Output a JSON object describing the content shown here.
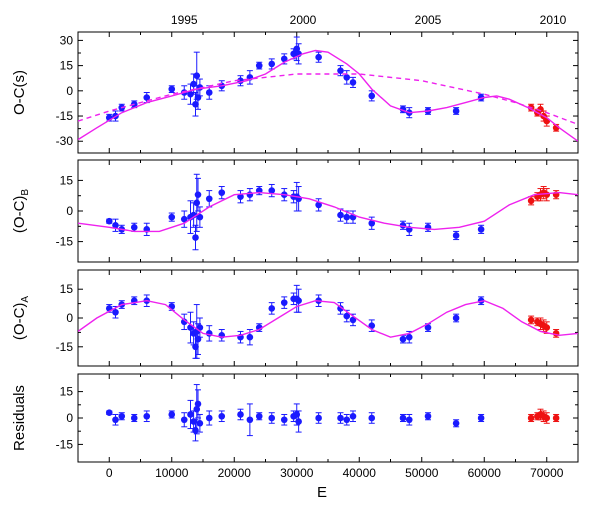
{
  "chart_data": [
    {
      "panel": "oc",
      "type": "scatter",
      "ylabel": "O-C(s)",
      "ylim": [
        -37,
        35
      ],
      "yticks": [
        -30,
        -15,
        0,
        15,
        30
      ],
      "xlim": [
        -5000,
        75000
      ],
      "series": [
        {
          "color": "#1a1aff",
          "kind": "points",
          "x": [
            0,
            1000,
            2000,
            4000,
            6000,
            10000,
            12000,
            13000,
            13500,
            13800,
            14000,
            14200,
            14500,
            16000,
            18000,
            21000,
            22500,
            24000,
            26000,
            28000,
            29500,
            30000,
            30300,
            33500,
            37000,
            38000,
            39000,
            42000,
            47000,
            48000,
            51000,
            55500,
            59500
          ],
          "y": [
            -16,
            -15,
            -10,
            -8,
            -4,
            1,
            -1,
            -2,
            4,
            -8,
            9,
            -4,
            2,
            -1,
            3,
            6,
            8,
            15,
            16,
            19,
            22,
            25,
            22,
            20,
            12,
            8,
            5,
            -3,
            -11,
            -13,
            -12,
            -12,
            -4
          ],
          "err": [
            2,
            3,
            2,
            2,
            3,
            2,
            4,
            6,
            6,
            7,
            14,
            7,
            5,
            4,
            3,
            3,
            4,
            2,
            3,
            3,
            3,
            7,
            6,
            3,
            3,
            4,
            3,
            3,
            2,
            3,
            2,
            2,
            2
          ]
        },
        {
          "color": "#ee1111",
          "kind": "points",
          "x": [
            67500,
            68500,
            69000,
            69500,
            70000,
            71500
          ],
          "y": [
            -10,
            -13,
            -11,
            -15,
            -18,
            -22
          ],
          "err": [
            2,
            2,
            3,
            3,
            3,
            2
          ]
        },
        {
          "color": "#ee22ee",
          "kind": "solid",
          "x": [
            -5000,
            -2000,
            2000,
            6000,
            10000,
            14000,
            18000,
            22000,
            25000,
            28000,
            31000,
            33000,
            35000,
            38000,
            40000,
            42000,
            45000,
            48000,
            51000,
            54000,
            57000,
            60000,
            62000,
            64000,
            67000,
            70000,
            72000,
            75000
          ],
          "y": [
            -29,
            -22,
            -13,
            -7,
            -3,
            1,
            3,
            6,
            10,
            17,
            22,
            24,
            23,
            16,
            10,
            1,
            -9,
            -13,
            -12,
            -10,
            -7,
            -4,
            -3,
            -5,
            -10,
            -16,
            -22,
            -30
          ]
        },
        {
          "color": "#ee22ee",
          "kind": "dashed",
          "x": [
            -5000,
            0,
            10000,
            20000,
            30000,
            40000,
            50000,
            60000,
            65000,
            70000,
            75000
          ],
          "y": [
            -18,
            -12,
            -2,
            6,
            10,
            10,
            6,
            -2,
            -7,
            -13,
            -20
          ]
        }
      ],
      "top_axis": {
        "years": [
          1995,
          2000,
          2005,
          2010
        ],
        "E_positions": [
          12000,
          31000,
          51000,
          71000
        ]
      }
    },
    {
      "panel": "ocb",
      "type": "scatter",
      "ylabel": "(O-C)",
      "ylabel_sub": "B",
      "ylim": [
        -25,
        25
      ],
      "yticks": [
        -15,
        0,
        15
      ],
      "xlim": [
        -5000,
        75000
      ],
      "series": [
        {
          "color": "#1a1aff",
          "kind": "points",
          "x": [
            0,
            1000,
            2000,
            4000,
            6000,
            10000,
            12000,
            13000,
            13500,
            13800,
            14000,
            14200,
            14500,
            16000,
            18000,
            21000,
            22500,
            24000,
            26000,
            28000,
            29500,
            30000,
            30300,
            33500,
            37000,
            38000,
            39000,
            42000,
            47000,
            48000,
            51000,
            55500,
            59500
          ],
          "y": [
            -5,
            -7,
            -9,
            -8,
            -9,
            -3,
            -4,
            -3,
            -2,
            -13,
            4,
            8,
            -3,
            6,
            9,
            7,
            8,
            10,
            10,
            8,
            7,
            7,
            6,
            3,
            -2,
            -3,
            -3,
            -6,
            -7,
            -9,
            -8,
            -12,
            -9
          ],
          "err": [
            1,
            3,
            2,
            2,
            3,
            2,
            4,
            8,
            6,
            6,
            14,
            8,
            5,
            4,
            3,
            3,
            3,
            2,
            3,
            3,
            3,
            7,
            6,
            3,
            3,
            3,
            3,
            3,
            2,
            3,
            2,
            2,
            2
          ]
        },
        {
          "color": "#ee1111",
          "kind": "points",
          "x": [
            67500,
            68500,
            69000,
            69500,
            70000,
            71500
          ],
          "y": [
            5,
            7,
            8,
            9,
            8,
            8
          ],
          "err": [
            2,
            2,
            3,
            3,
            3,
            2
          ]
        },
        {
          "color": "#ee22ee",
          "kind": "solid",
          "x": [
            -5000,
            0,
            4000,
            8000,
            12000,
            16000,
            20000,
            24000,
            28000,
            32000,
            36000,
            40000,
            44000,
            48000,
            52000,
            56000,
            60000,
            64000,
            68000,
            72000,
            75000
          ],
          "y": [
            -6,
            -8,
            -10,
            -10,
            -6,
            2,
            8,
            9,
            8,
            6,
            2,
            -3,
            -6,
            -8,
            -9,
            -8,
            -5,
            3,
            8,
            9,
            8
          ]
        }
      ]
    },
    {
      "panel": "oca",
      "type": "scatter",
      "ylabel": "(O-C)",
      "ylabel_sub": "A",
      "ylim": [
        -25,
        25
      ],
      "yticks": [
        -15,
        0,
        15
      ],
      "xlim": [
        -5000,
        75000
      ],
      "series": [
        {
          "color": "#1a1aff",
          "kind": "points",
          "x": [
            0,
            1000,
            2000,
            4000,
            6000,
            10000,
            12000,
            13000,
            13500,
            13800,
            14000,
            14200,
            14500,
            16000,
            18000,
            21000,
            22500,
            24000,
            26000,
            28000,
            29500,
            30000,
            30300,
            33500,
            37000,
            38000,
            39000,
            42000,
            47000,
            48000,
            51000,
            55500,
            59500
          ],
          "y": [
            5,
            3,
            7,
            9,
            9,
            6,
            -2,
            -5,
            -8,
            -15,
            -7,
            -11,
            -5,
            -8,
            -9,
            -10,
            -10,
            -5,
            5,
            8,
            10,
            10,
            9,
            9,
            5,
            1,
            -1,
            -4,
            -11,
            -10,
            -5,
            0,
            9
          ],
          "err": [
            2,
            3,
            2,
            2,
            3,
            2,
            4,
            8,
            6,
            6,
            14,
            8,
            5,
            4,
            3,
            3,
            4,
            2,
            3,
            3,
            3,
            7,
            6,
            3,
            3,
            3,
            3,
            3,
            2,
            3,
            2,
            2,
            2
          ]
        },
        {
          "color": "#ee1111",
          "kind": "points",
          "x": [
            67500,
            68500,
            69000,
            69500,
            70000,
            71500
          ],
          "y": [
            -1,
            -2,
            -3,
            -4,
            -5,
            -8
          ],
          "err": [
            2,
            2,
            3,
            3,
            3,
            2
          ]
        },
        {
          "color": "#ee22ee",
          "kind": "solid",
          "x": [
            -5000,
            -2000,
            2000,
            6000,
            9000,
            12000,
            15000,
            18000,
            21000,
            24000,
            27000,
            30000,
            33000,
            36000,
            39000,
            42000,
            45000,
            48000,
            51000,
            54000,
            57000,
            60000,
            63000,
            66000,
            69000,
            72000,
            75000
          ],
          "y": [
            -7,
            0,
            7,
            9,
            7,
            -1,
            -8,
            -10,
            -9,
            -6,
            0,
            6,
            9,
            8,
            1,
            -6,
            -10,
            -8,
            -3,
            3,
            7,
            9,
            5,
            -2,
            -7,
            -9,
            -8
          ]
        }
      ]
    },
    {
      "panel": "res",
      "type": "scatter",
      "ylabel": "Residuals",
      "ylim": [
        -25,
        25
      ],
      "yticks": [
        -15,
        0,
        15
      ],
      "xlim": [
        -5000,
        75000
      ],
      "xticks": [
        0,
        10000,
        20000,
        30000,
        40000,
        50000,
        60000,
        70000
      ],
      "xlabel": "E",
      "series": [
        {
          "color": "#1a1aff",
          "kind": "points",
          "x": [
            0,
            1000,
            2000,
            4000,
            6000,
            10000,
            12000,
            13000,
            13500,
            13800,
            14000,
            14200,
            14500,
            16000,
            18000,
            21000,
            22500,
            24000,
            26000,
            28000,
            29500,
            30000,
            30300,
            33500,
            37000,
            38000,
            39000,
            42000,
            47000,
            48000,
            51000,
            55500,
            59500
          ],
          "y": [
            3,
            -1,
            1,
            0,
            1,
            2,
            -1,
            2,
            -2,
            -7,
            5,
            8,
            -3,
            0,
            1,
            2,
            -1,
            1,
            0,
            -1,
            1,
            2,
            -2,
            0,
            0,
            -1,
            1,
            0,
            0,
            -1,
            1,
            -3,
            0
          ],
          "err": [
            1,
            3,
            2,
            2,
            3,
            2,
            4,
            8,
            6,
            6,
            14,
            8,
            5,
            4,
            3,
            3,
            9,
            2,
            3,
            3,
            3,
            6,
            6,
            3,
            3,
            3,
            3,
            3,
            2,
            3,
            2,
            2,
            2
          ]
        },
        {
          "color": "#ee1111",
          "kind": "points",
          "x": [
            67500,
            68500,
            69000,
            69500,
            70000,
            71500
          ],
          "y": [
            0,
            1,
            2,
            1,
            0,
            0
          ],
          "err": [
            2,
            2,
            3,
            3,
            3,
            2
          ]
        }
      ]
    }
  ]
}
